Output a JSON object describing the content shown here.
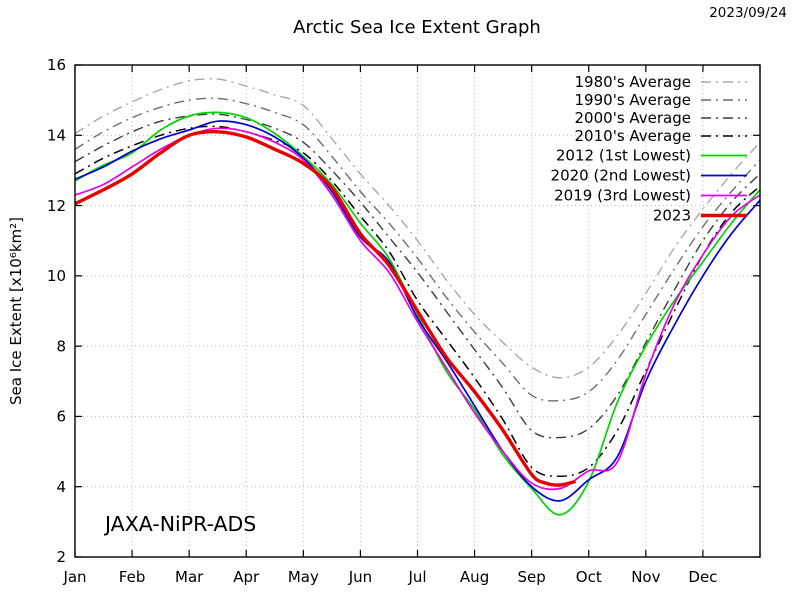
{
  "chart_data": {
    "type": "line",
    "title": "Arctic Sea Ice Extent Graph",
    "date_stamp": "2023/09/24",
    "watermark": "JAXA-NiPR-ADS",
    "ylabel": "Sea Ice Extent [x10⁶km²]",
    "xlabel": "",
    "ylim": [
      2,
      16
    ],
    "xlim_months": [
      0,
      12
    ],
    "y_ticks": [
      2,
      4,
      6,
      8,
      10,
      12,
      14,
      16
    ],
    "x_months": [
      "Jan",
      "Feb",
      "Mar",
      "Apr",
      "May",
      "Jun",
      "Jul",
      "Aug",
      "Sep",
      "Oct",
      "Nov",
      "Dec"
    ],
    "grid": "dotted",
    "legend_position": "top-right-inside",
    "x_unit": "months since Jan 1 (half-month sampling)",
    "value_unit": "x10^6 km^2",
    "series": [
      {
        "name": "1980's Average",
        "color": "#a8a8a8",
        "style": "dashdot",
        "width": 1.4,
        "x": [
          0,
          0.5,
          1,
          1.5,
          2,
          2.5,
          3,
          3.5,
          4,
          4.5,
          5,
          5.5,
          6,
          6.5,
          7,
          7.5,
          8,
          8.5,
          9,
          9.5,
          10,
          10.5,
          11,
          11.5,
          12
        ],
        "values": [
          14.05,
          14.55,
          14.95,
          15.3,
          15.55,
          15.6,
          15.4,
          15.15,
          14.85,
          13.9,
          12.9,
          12.0,
          11.0,
          9.9,
          8.9,
          8.1,
          7.4,
          7.1,
          7.4,
          8.3,
          9.5,
          10.8,
          11.9,
          12.9,
          13.8
        ]
      },
      {
        "name": "1990's Average",
        "color": "#6e6e6e",
        "style": "dashdot",
        "width": 1.4,
        "x": [
          0,
          0.5,
          1,
          1.5,
          2,
          2.5,
          3,
          3.5,
          4,
          4.5,
          5,
          5.5,
          6,
          6.5,
          7,
          7.5,
          8,
          8.5,
          9,
          9.5,
          10,
          10.5,
          11,
          11.5,
          12
        ],
        "values": [
          13.6,
          14.1,
          14.5,
          14.8,
          15.0,
          15.05,
          14.9,
          14.65,
          14.3,
          13.4,
          12.4,
          11.5,
          10.5,
          9.4,
          8.4,
          7.5,
          6.6,
          6.45,
          6.7,
          7.6,
          8.9,
          10.2,
          11.4,
          12.4,
          13.3
        ]
      },
      {
        "name": "2000's Average",
        "color": "#3c3c3c",
        "style": "dashdot",
        "width": 1.4,
        "x": [
          0,
          0.5,
          1,
          1.5,
          2,
          2.5,
          3,
          3.5,
          4,
          4.5,
          5,
          5.5,
          6,
          6.5,
          7,
          7.5,
          8,
          8.5,
          9,
          9.5,
          10,
          10.5,
          11,
          11.5,
          12
        ],
        "values": [
          13.25,
          13.7,
          14.1,
          14.4,
          14.55,
          14.6,
          14.45,
          14.2,
          13.8,
          13.0,
          12.1,
          11.1,
          10.1,
          9.0,
          7.9,
          6.8,
          5.6,
          5.4,
          5.65,
          6.6,
          8.1,
          9.6,
          11.0,
          12.1,
          12.9
        ]
      },
      {
        "name": "2010's Average",
        "color": "#000000",
        "style": "dashdot",
        "width": 1.5,
        "x": [
          0,
          0.5,
          1,
          1.5,
          2,
          2.5,
          3,
          3.5,
          4,
          4.5,
          5,
          5.5,
          6,
          6.5,
          7,
          7.5,
          8,
          8.5,
          9,
          9.5,
          10,
          10.5,
          11,
          11.5,
          12
        ],
        "values": [
          12.9,
          13.35,
          13.7,
          14.0,
          14.2,
          14.25,
          14.1,
          13.85,
          13.5,
          12.7,
          11.7,
          10.7,
          9.3,
          8.2,
          7.1,
          5.9,
          4.55,
          4.3,
          4.55,
          5.6,
          7.3,
          9.0,
          10.6,
          11.8,
          12.55
        ]
      },
      {
        "name": "2012 (1st Lowest)",
        "color": "#00d400",
        "style": "solid",
        "width": 1.7,
        "x": [
          0,
          0.5,
          1,
          1.5,
          2,
          2.5,
          3,
          3.5,
          4,
          4.5,
          5,
          5.5,
          6,
          6.5,
          7,
          7.5,
          8,
          8.5,
          9,
          9.5,
          10,
          10.5,
          11,
          11.5,
          12
        ],
        "values": [
          12.7,
          13.15,
          13.5,
          14.15,
          14.55,
          14.65,
          14.5,
          14.05,
          13.4,
          12.6,
          11.5,
          10.5,
          8.9,
          7.3,
          6.2,
          4.9,
          3.95,
          3.2,
          4.15,
          6.4,
          8.0,
          9.3,
          10.4,
          11.5,
          12.45
        ]
      },
      {
        "name": "2020 (2nd Lowest)",
        "color": "#0000cd",
        "style": "solid",
        "width": 1.7,
        "x": [
          0,
          0.5,
          1,
          1.5,
          2,
          2.5,
          3,
          3.5,
          4,
          4.5,
          5,
          5.5,
          6,
          6.5,
          7,
          7.5,
          8,
          8.5,
          9,
          9.5,
          10,
          10.5,
          11,
          11.5,
          12
        ],
        "values": [
          12.75,
          13.1,
          13.55,
          13.9,
          14.15,
          14.4,
          14.3,
          13.95,
          13.35,
          12.4,
          11.1,
          10.4,
          8.8,
          7.6,
          6.3,
          5.0,
          4.0,
          3.6,
          4.2,
          4.85,
          7.0,
          8.6,
          10.0,
          11.2,
          12.15
        ]
      },
      {
        "name": "2019 (3rd Lowest)",
        "color": "#e800e8",
        "style": "solid",
        "width": 1.7,
        "x": [
          0,
          0.5,
          1,
          1.5,
          2,
          2.5,
          3,
          3.5,
          4,
          4.5,
          5,
          5.5,
          6,
          6.5,
          7,
          7.5,
          8,
          8.5,
          9,
          9.5,
          10,
          10.5,
          11,
          11.5,
          12
        ],
        "values": [
          12.3,
          12.6,
          13.1,
          13.6,
          14.0,
          14.2,
          14.1,
          13.8,
          13.3,
          12.3,
          11.0,
          10.1,
          8.7,
          7.4,
          6.1,
          5.0,
          4.1,
          3.95,
          4.45,
          4.7,
          7.2,
          9.2,
          10.6,
          11.7,
          12.3
        ]
      },
      {
        "name": "2023",
        "color": "#e60000",
        "style": "solid",
        "width": 3.4,
        "x": [
          0,
          0.5,
          1,
          1.5,
          2,
          2.5,
          3,
          3.5,
          4,
          4.5,
          5,
          5.5,
          6,
          6.5,
          7,
          7.5,
          8,
          8.25,
          8.5,
          8.77
        ],
        "values": [
          12.05,
          12.45,
          12.9,
          13.5,
          14.0,
          14.1,
          13.95,
          13.6,
          13.2,
          12.5,
          11.2,
          10.3,
          9.0,
          7.7,
          6.7,
          5.6,
          4.35,
          4.1,
          4.05,
          4.15
        ]
      }
    ]
  }
}
